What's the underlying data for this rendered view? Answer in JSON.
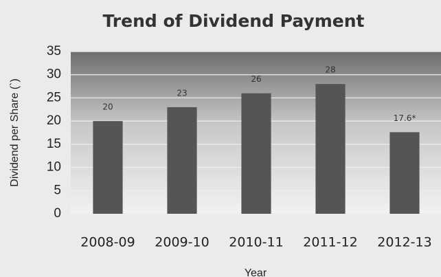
{
  "chart_data": {
    "type": "bar",
    "title": "Trend of Dividend Payment",
    "categories": [
      "2008-09",
      "2009-10",
      "2010-11",
      "2011-12",
      "2012-13"
    ],
    "values": [
      20,
      23,
      26,
      28,
      17.6
    ],
    "value_labels": [
      "20",
      "23",
      "26",
      "28",
      "17.6*"
    ],
    "color": "#555555",
    "x_label": "Year",
    "y_label": "Dividend per Share (`)",
    "ylim": [
      0,
      35
    ],
    "yticks": [
      0,
      5,
      10,
      15,
      20,
      25,
      30,
      35
    ],
    "grid": true
  }
}
